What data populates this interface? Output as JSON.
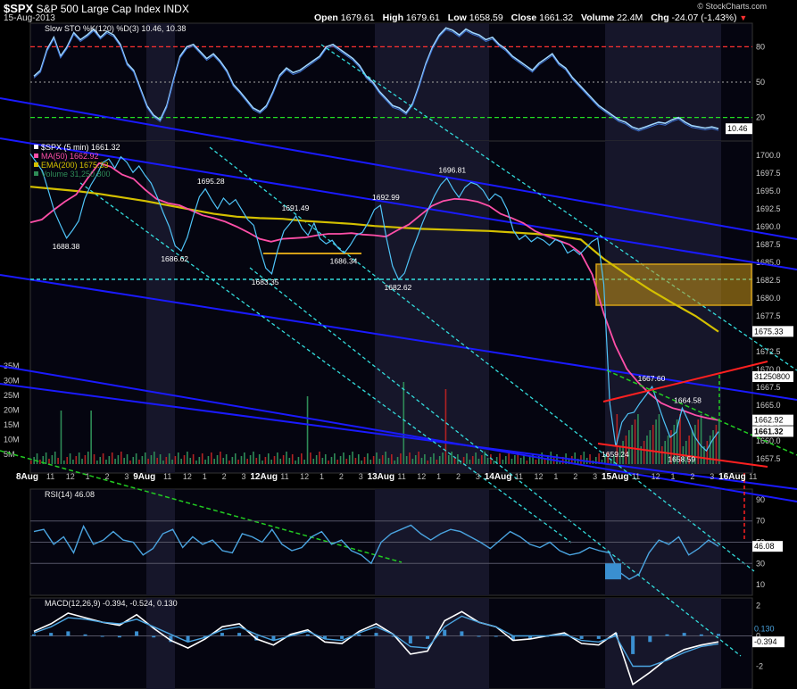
{
  "header": {
    "symbol": "$SPX",
    "name": "S&P 500 Large Cap Index",
    "exchange": "INDX",
    "date": "15-Aug-2013",
    "open_label": "Open",
    "open": "1679.61",
    "high_label": "High",
    "high": "1679.61",
    "low_label": "Low",
    "low": "1658.59",
    "close_label": "Close",
    "close": "1661.32",
    "volume_label": "Volume",
    "volume": "22.4M",
    "chg_label": "Chg",
    "chg": "-24.07 (-1.43%)",
    "watermark": "© StockCharts.com"
  },
  "colors": {
    "background": "#000000",
    "panel_bg": "#050510",
    "session_shade": "#16162a",
    "price": "#4fc3f7",
    "ma50": "#ff4fa8",
    "ema200": "#d4c000",
    "trend_blue": "#1a1aff",
    "trend_cyan": "#33dddd",
    "trend_green": "#22cc22",
    "trend_red": "#ff2020",
    "box": "#d4a017",
    "volume_up": "#2e8b57",
    "volume_down": "#b22222"
  },
  "chart_data": [
    {
      "type": "line",
      "panel": "stochastic",
      "title": "Slow STO %K(120) %D(3)",
      "values_text": "10.46, 10.38",
      "last_value": "10.46",
      "ylim": [
        0,
        100
      ],
      "y_ticks": [
        "80",
        "50",
        "20"
      ],
      "reference_lines": [
        {
          "value": 80,
          "color": "red",
          "style": "dashed"
        },
        {
          "value": 50,
          "color": "grey",
          "style": "dotted"
        },
        {
          "value": 20,
          "color": "green",
          "style": "dashed"
        }
      ],
      "series": [
        {
          "values": [
            55,
            60,
            78,
            88,
            72,
            80,
            92,
            86,
            90,
            95,
            88,
            93,
            90,
            82,
            66,
            60,
            45,
            30,
            22,
            18,
            30,
            52,
            72,
            80,
            82,
            76,
            70,
            74,
            68,
            60,
            48,
            42,
            35,
            28,
            25,
            30,
            42,
            56,
            62,
            58,
            60,
            64,
            68,
            72,
            80,
            82,
            78,
            74,
            70,
            64,
            55,
            50,
            42,
            36,
            30,
            28,
            24,
            32,
            48,
            66,
            80,
            90,
            96,
            94,
            90,
            95,
            92,
            90,
            86,
            88,
            82,
            78,
            72,
            68,
            64,
            60,
            66,
            70,
            74,
            66,
            62,
            54,
            48,
            42,
            36,
            30,
            26,
            22,
            18,
            16,
            12,
            10,
            12,
            14,
            16,
            15,
            18,
            20,
            16,
            13,
            12,
            11,
            12,
            10.46
          ]
        }
      ]
    },
    {
      "type": "line",
      "panel": "price",
      "title": "$SPX (5 min) 1661.32",
      "legend": [
        "$SPX (5 min) 1661.32",
        "MA(50) 1662.92",
        "EMA(200) 1675.33",
        "Volume 31,250,800"
      ],
      "x_tick_labels": [
        "8Aug",
        "11",
        "12",
        "1",
        "2",
        "3",
        "9Aug",
        "11",
        "12",
        "1",
        "2",
        "3",
        "12Aug",
        "11",
        "12",
        "1",
        "2",
        "3",
        "13Aug",
        "11",
        "12",
        "1",
        "2",
        "3",
        "14Aug",
        "11",
        "12",
        "1",
        "2",
        "3",
        "15Aug",
        "11",
        "12",
        "1",
        "2",
        "3",
        "16Aug",
        "11"
      ],
      "ylim": [
        1655.5,
        1702.0
      ],
      "y_ticks": [
        "1700.0",
        "1697.5",
        "1695.0",
        "1692.5",
        "1690.0",
        "1687.5",
        "1685.0",
        "1682.5",
        "1680.0",
        "1677.5",
        "1675.0",
        "1672.5",
        "1670.0",
        "1667.5",
        "1665.0",
        "1662.5",
        "1660.0",
        "1657.5"
      ],
      "value_tags": [
        "1675.33",
        "31250800",
        "1662.92",
        "1661.32"
      ],
      "annotations": [
        {
          "text": "1688.38",
          "x": 6,
          "y": 1688.38
        },
        {
          "text": "1686.62",
          "x": 24,
          "y": 1686.62
        },
        {
          "text": "1695.28",
          "x": 30,
          "y": 1695.28
        },
        {
          "text": "1683.35",
          "x": 39,
          "y": 1683.35
        },
        {
          "text": "1691.49",
          "x": 44,
          "y": 1691.49
        },
        {
          "text": "1686.34",
          "x": 52,
          "y": 1686.34
        },
        {
          "text": "1692.99",
          "x": 59,
          "y": 1692.99
        },
        {
          "text": "1682.62",
          "x": 61,
          "y": 1682.62
        },
        {
          "text": "1696.81",
          "x": 70,
          "y": 1696.81
        },
        {
          "text": "1667.60",
          "x": 103,
          "y": 1667.6
        },
        {
          "text": "1664.58",
          "x": 109,
          "y": 1664.58
        },
        {
          "text": "1659.24",
          "x": 97,
          "y": 1659.24
        },
        {
          "text": "1658.59",
          "x": 108,
          "y": 1658.59
        }
      ],
      "series": [
        {
          "name": "$SPX (5 min)",
          "x_start": 0,
          "values": [
            1700.2,
            1699.0,
            1697.8,
            1695.0,
            1692.1,
            1690.2,
            1688.4,
            1689.5,
            1690.8,
            1693.9,
            1695.8,
            1697.2,
            1699.0,
            1699.5,
            1698.2,
            1699.8,
            1699.0,
            1697.6,
            1698.5,
            1697.2,
            1696.1,
            1694.2,
            1692.0,
            1690.0,
            1687.3,
            1686.6,
            1688.5,
            1691.5,
            1694.2,
            1695.3,
            1693.8,
            1692.5,
            1694.0,
            1693.1,
            1693.8,
            1692.4,
            1691.0,
            1690.2,
            1687.0,
            1684.2,
            1683.4,
            1686.8,
            1689.4,
            1690.4,
            1691.5,
            1689.8,
            1688.8,
            1690.5,
            1688.3,
            1687.6,
            1688.1,
            1687.0,
            1686.3,
            1687.4,
            1688.8,
            1689.2,
            1690.6,
            1692.4,
            1693.0,
            1688.4,
            1684.5,
            1682.6,
            1683.5,
            1686.1,
            1688.3,
            1690.6,
            1692.6,
            1694.4,
            1695.9,
            1696.8,
            1695.3,
            1694.1,
            1695.5,
            1696.2,
            1695.9,
            1695.1,
            1693.7,
            1694.6,
            1694.1,
            1692.4,
            1689.5,
            1688.2,
            1688.8,
            1687.9,
            1688.5,
            1688.1,
            1687.4,
            1688.2,
            1687.8,
            1686.3,
            1686.8,
            1686.1,
            1687.0,
            1687.9,
            1688.4,
            1682.0,
            1665.2,
            1659.2,
            1662.6,
            1663.8,
            1664.0,
            1665.3,
            1666.4,
            1667.6,
            1665.1,
            1662.7,
            1660.5,
            1661.2,
            1664.6,
            1662.8,
            1660.7,
            1659.4,
            1658.6,
            1660.1,
            1661.3
          ]
        },
        {
          "name": "MA(50)",
          "x_start": 0,
          "values": [
            1690.6,
            1691.0,
            1692.3,
            1693.5,
            1694.5,
            1696.8,
            1698.9,
            1698.4,
            1697.3,
            1696.7,
            1695.2,
            1693.9,
            1693.3,
            1693.0,
            1692.3,
            1691.6,
            1691.2,
            1690.7,
            1690.0,
            1689.2,
            1688.3,
            1687.9,
            1688.3,
            1688.4,
            1688.5,
            1688.8,
            1689.0,
            1689.0,
            1689.1,
            1688.9,
            1688.8,
            1688.6,
            1689.5,
            1690.3,
            1691.6,
            1692.9,
            1693.6,
            1693.9,
            1693.8,
            1693.5,
            1692.9,
            1691.8,
            1691.2,
            1690.5,
            1689.4,
            1688.7,
            1688.1,
            1687.5,
            1686.3,
            1683.3,
            1677.8,
            1673.4,
            1670.1,
            1668.2,
            1666.6,
            1665.3,
            1664.6,
            1664.2,
            1663.6,
            1663.2,
            1662.9
          ]
        },
        {
          "name": "EMA(200)",
          "x_start": 0,
          "values": [
            1695.6,
            1695.3,
            1695.0,
            1694.6,
            1694.1,
            1693.6,
            1693.0,
            1692.4,
            1691.8,
            1691.4,
            1691.2,
            1691.1,
            1690.8,
            1690.6,
            1690.4,
            1690.1,
            1689.9,
            1689.7,
            1689.6,
            1689.5,
            1689.4,
            1689.2,
            1689.0,
            1688.7,
            1688.2,
            1685.5,
            1683.3,
            1681.2,
            1679.3,
            1677.5,
            1675.3
          ]
        },
        {
          "name": "Volume",
          "values_millions_hint": [
            1.2,
            0.6,
            31.2,
            0.8,
            8.5,
            17.0,
            7.2,
            10.3,
            22.0,
            11.5,
            15.5,
            14.0,
            31.25
          ]
        }
      ]
    },
    {
      "type": "line",
      "panel": "rsi",
      "title": "RSI(14) 46.08",
      "last_value": "46.08",
      "ylim": [
        0,
        100
      ],
      "y_ticks": [
        "90",
        "70",
        "50",
        "30",
        "10"
      ],
      "series": [
        {
          "values": [
            60,
            62,
            48,
            55,
            40,
            65,
            48,
            52,
            60,
            52,
            50,
            38,
            44,
            58,
            62,
            45,
            55,
            48,
            52,
            42,
            40,
            58,
            55,
            50,
            62,
            48,
            42,
            45,
            55,
            60,
            48,
            52,
            42,
            38,
            30,
            50,
            58,
            62,
            66,
            58,
            52,
            58,
            62,
            60,
            55,
            50,
            44,
            52,
            60,
            55,
            48,
            45,
            50,
            42,
            38,
            40,
            45,
            42,
            40,
            22,
            15,
            20,
            40,
            52,
            48,
            55,
            38,
            44,
            52,
            46.08
          ]
        }
      ]
    },
    {
      "type": "line",
      "panel": "macd",
      "title": "MACD(12,26,9) -0.394, -0.524, 0.130",
      "last_values": [
        "0.130",
        "-0.394"
      ],
      "ylim": [
        -3.5,
        2.5
      ],
      "y_ticks": [
        "2",
        "0",
        "-2"
      ],
      "series": [
        {
          "name": "MACD",
          "values": [
            0.3,
            0.8,
            1.5,
            1.2,
            0.9,
            0.7,
            1.4,
            0.5,
            -0.3,
            -0.8,
            -0.2,
            0.6,
            0.8,
            -0.2,
            -0.6,
            0.1,
            0.4,
            -0.4,
            -0.5,
            0.3,
            0.8,
            0.1,
            -1.2,
            -1.0,
            1.0,
            1.6,
            0.9,
            0.6,
            -0.3,
            -0.2,
            0.0,
            0.2,
            -0.5,
            -0.6,
            0.2,
            -3.2,
            -2.4,
            -1.5,
            -0.9,
            -0.6,
            -0.394
          ]
        },
        {
          "name": "Signal",
          "values": [
            0.2,
            0.6,
            1.2,
            1.1,
            0.9,
            0.8,
            1.1,
            0.6,
            0.1,
            -0.4,
            -0.1,
            0.4,
            0.6,
            0.1,
            -0.3,
            0.0,
            0.3,
            -0.2,
            -0.3,
            0.2,
            0.6,
            0.1,
            -0.7,
            -0.8,
            0.6,
            1.3,
            0.9,
            0.6,
            0.0,
            0.0,
            0.0,
            0.1,
            -0.3,
            -0.4,
            0.0,
            -2.0,
            -2.0,
            -1.6,
            -1.1,
            -0.7,
            -0.524
          ]
        },
        {
          "name": "Histogram",
          "values": [
            0.1,
            0.2,
            0.3,
            0.1,
            0.0,
            -0.1,
            0.3,
            -0.1,
            -0.4,
            -0.4,
            -0.1,
            0.2,
            0.2,
            -0.3,
            -0.3,
            0.1,
            0.1,
            -0.2,
            -0.2,
            0.1,
            0.2,
            0.0,
            -0.5,
            -0.2,
            0.4,
            0.3,
            0.0,
            0.0,
            -0.3,
            -0.2,
            0.0,
            0.1,
            -0.2,
            -0.2,
            0.2,
            -1.2,
            -0.4,
            0.1,
            0.2,
            0.1,
            0.13
          ]
        }
      ]
    }
  ]
}
